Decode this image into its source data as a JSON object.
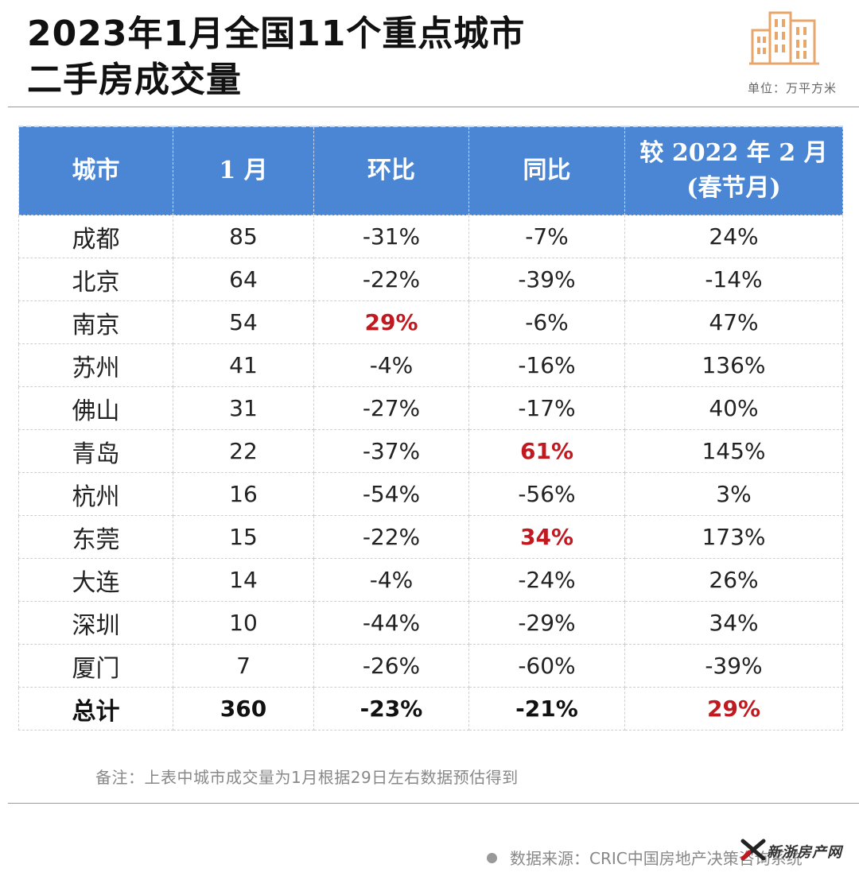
{
  "header": {
    "title_line1": "2023年1月全国11个重点城市",
    "title_line2": "二手房成交量",
    "unit": "单位：万平方米",
    "logo_icon": "buildings-icon",
    "logo_color": "#e8a66b"
  },
  "chart_data": {
    "type": "table",
    "columns": [
      "城市",
      "1月",
      "环比",
      "同比",
      "较 2022 年 2 月\n(春节月)"
    ],
    "column_lines": [
      [
        "城市"
      ],
      [
        "1 月"
      ],
      [
        "环比"
      ],
      [
        "同比"
      ],
      [
        "较 2022 年 2 月",
        "(春节月)"
      ]
    ],
    "rows": [
      {
        "city": "成都",
        "jan": "85",
        "mom": "-31%",
        "yoy": "-7%",
        "vs_feb2022": "24%"
      },
      {
        "city": "北京",
        "jan": "64",
        "mom": "-22%",
        "yoy": "-39%",
        "vs_feb2022": "-14%"
      },
      {
        "city": "南京",
        "jan": "54",
        "mom": "29%",
        "yoy": "-6%",
        "vs_feb2022": "47%"
      },
      {
        "city": "苏州",
        "jan": "41",
        "mom": "-4%",
        "yoy": "-16%",
        "vs_feb2022": "136%"
      },
      {
        "city": "佛山",
        "jan": "31",
        "mom": "-27%",
        "yoy": "-17%",
        "vs_feb2022": "40%"
      },
      {
        "city": "青岛",
        "jan": "22",
        "mom": "-37%",
        "yoy": "61%",
        "vs_feb2022": "145%"
      },
      {
        "city": "杭州",
        "jan": "16",
        "mom": "-54%",
        "yoy": "-56%",
        "vs_feb2022": "3%"
      },
      {
        "city": "东莞",
        "jan": "15",
        "mom": "-22%",
        "yoy": "34%",
        "vs_feb2022": "173%"
      },
      {
        "city": "大连",
        "jan": "14",
        "mom": "-4%",
        "yoy": "-24%",
        "vs_feb2022": "26%"
      },
      {
        "city": "深圳",
        "jan": "10",
        "mom": "-44%",
        "yoy": "-29%",
        "vs_feb2022": "34%"
      },
      {
        "city": "厦门",
        "jan": "7",
        "mom": "-26%",
        "yoy": "-60%",
        "vs_feb2022": "-39%"
      }
    ],
    "total": {
      "city": "总计",
      "jan": "360",
      "mom": "-23%",
      "yoy": "-21%",
      "vs_feb2022": "29%"
    },
    "highlight_color": "#c0191f",
    "header_color": "#4a86d4"
  },
  "footer": {
    "note": "备注：上表中城市成交量为1月根据29日左右数据预估得到",
    "source": "数据来源：CRIC中国房地产决策咨询系统",
    "watermark": "新浙房产网"
  }
}
